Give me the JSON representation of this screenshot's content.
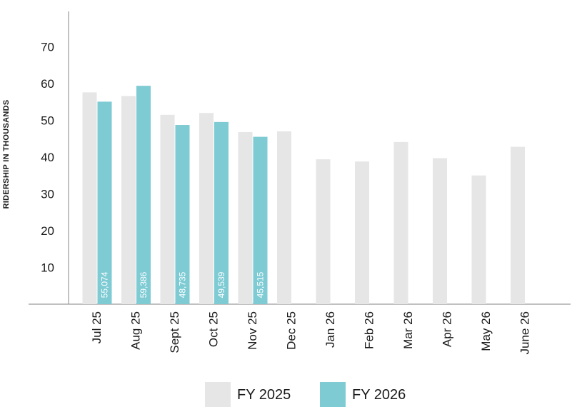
{
  "chart_data": {
    "type": "bar",
    "ylabel": "RIDERSHIP IN THOUSANDS",
    "xlabel": "",
    "ylim": [
      0,
      80
    ],
    "yticks": [
      10,
      20,
      30,
      40,
      50,
      60,
      70
    ],
    "categories": [
      "Jul 25",
      "Aug 25",
      "Sept 25",
      "Oct 25",
      "Nov 25",
      "Dec 25",
      "Jan 26",
      "Feb 26",
      "Mar 26",
      "Apr 26",
      "May 26",
      "June 26"
    ],
    "series": [
      {
        "name": "FY 2025",
        "color": "#e6e6e6",
        "values": [
          57.6,
          56.6,
          51.5,
          52.0,
          46.8,
          47.0,
          39.4,
          38.8,
          44.1,
          39.7,
          35.0,
          42.8
        ]
      },
      {
        "name": "FY 2026",
        "color": "#7ecbd4",
        "values": [
          55.074,
          59.386,
          48.735,
          49.539,
          45.515,
          null,
          null,
          null,
          null,
          null,
          null,
          null
        ],
        "data_labels": [
          "55,074",
          "59,386",
          "48,735",
          "49,539",
          "45,515"
        ]
      }
    ],
    "legend_position": "bottom-center",
    "grid": false
  }
}
